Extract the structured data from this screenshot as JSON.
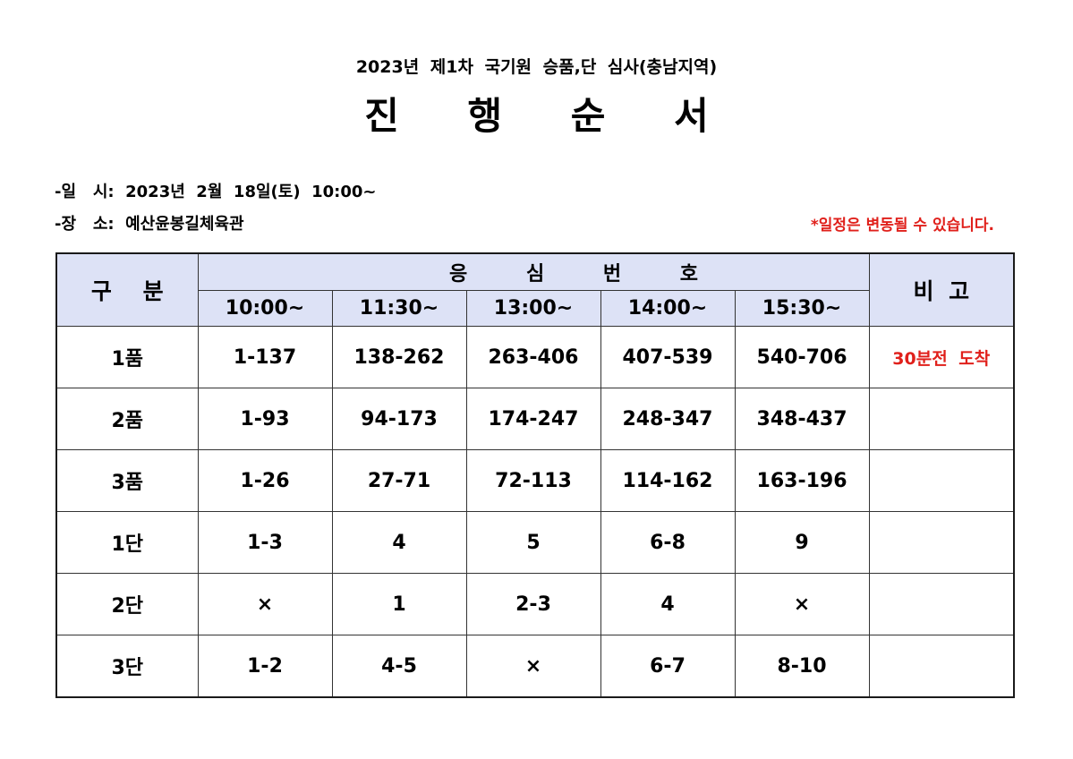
{
  "header": {
    "subtitle": "2023년 제1차 국기원 승품,단 심사(충남지역)",
    "title": "진 행 순 서"
  },
  "info": {
    "date_line": "-일   시:  2023년  2월  18일(토)  10:00~",
    "place_line": "-장   소:  예산윤봉길체육관",
    "notice": "*일정은 변동될 수 있습니다."
  },
  "colors": {
    "header_fill": "#dde2f6",
    "accent_red": "#e0201b",
    "text": "#000000",
    "border": "#333333"
  },
  "table": {
    "headers": {
      "category": "구 분",
      "exam_number": "응 심 번 호",
      "remarks": "비 고",
      "time_slots": [
        "10:00~",
        "11:30~",
        "13:00~",
        "14:00~",
        "15:30~"
      ]
    },
    "rows": [
      {
        "category": "1품",
        "slots": [
          "1-137",
          "138-262",
          "263-406",
          "407-539",
          "540-706"
        ],
        "remark": "30분전 도착"
      },
      {
        "category": "2품",
        "slots": [
          "1-93",
          "94-173",
          "174-247",
          "248-347",
          "348-437"
        ],
        "remark": ""
      },
      {
        "category": "3품",
        "slots": [
          "1-26",
          "27-71",
          "72-113",
          "114-162",
          "163-196"
        ],
        "remark": ""
      },
      {
        "category": "1단",
        "slots": [
          "1-3",
          "4",
          "5",
          "6-8",
          "9"
        ],
        "remark": ""
      },
      {
        "category": "2단",
        "slots": [
          "×",
          "1",
          "2-3",
          "4",
          "×"
        ],
        "remark": ""
      },
      {
        "category": "3단",
        "slots": [
          "1-2",
          "4-5",
          "×",
          "6-7",
          "8-10"
        ],
        "remark": ""
      }
    ]
  }
}
